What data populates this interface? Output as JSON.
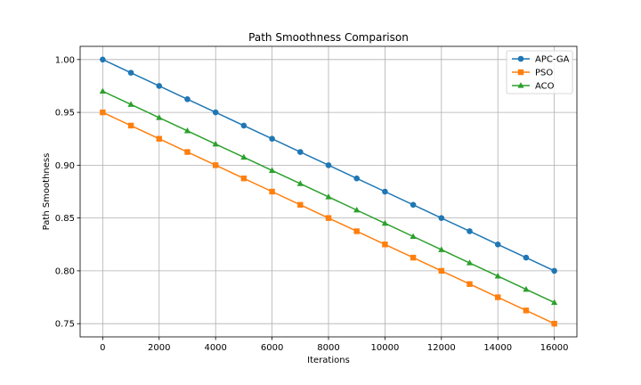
{
  "chart_data": {
    "type": "line",
    "title": "Path Smoothness Comparison",
    "xlabel": "Iterations",
    "ylabel": "Path Smoothness",
    "xlim": [
      -800,
      16800
    ],
    "ylim": [
      0.7375,
      1.0125
    ],
    "xticks": [
      0,
      2000,
      4000,
      6000,
      8000,
      10000,
      12000,
      14000,
      16000
    ],
    "yticks": [
      0.75,
      0.8,
      0.85,
      0.9,
      0.95,
      1.0
    ],
    "ytick_labels": [
      "0.75",
      "0.80",
      "0.85",
      "0.90",
      "0.95",
      "1.00"
    ],
    "grid": true,
    "legend_position": "top-right",
    "x": [
      0,
      1000,
      2000,
      3000,
      4000,
      5000,
      6000,
      7000,
      8000,
      9000,
      10000,
      11000,
      12000,
      13000,
      14000,
      15000,
      16000
    ],
    "series": [
      {
        "name": "APC-GA",
        "color": "#1f77b4",
        "marker": "circle",
        "values": [
          1.0,
          0.9875,
          0.975,
          0.9625,
          0.95,
          0.9375,
          0.925,
          0.9125,
          0.9,
          0.8875,
          0.875,
          0.8625,
          0.85,
          0.8375,
          0.825,
          0.8125,
          0.8
        ]
      },
      {
        "name": "PSO",
        "color": "#ff7f0e",
        "marker": "square",
        "values": [
          0.95,
          0.9375,
          0.925,
          0.9125,
          0.9,
          0.8875,
          0.875,
          0.8625,
          0.85,
          0.8375,
          0.825,
          0.8125,
          0.8,
          0.7875,
          0.775,
          0.7625,
          0.75
        ]
      },
      {
        "name": "ACO",
        "color": "#2ca02c",
        "marker": "triangle",
        "values": [
          0.97,
          0.9575,
          0.945,
          0.9325,
          0.92,
          0.9075,
          0.895,
          0.8825,
          0.87,
          0.8575,
          0.845,
          0.8325,
          0.82,
          0.8075,
          0.795,
          0.7825,
          0.77
        ]
      }
    ]
  }
}
